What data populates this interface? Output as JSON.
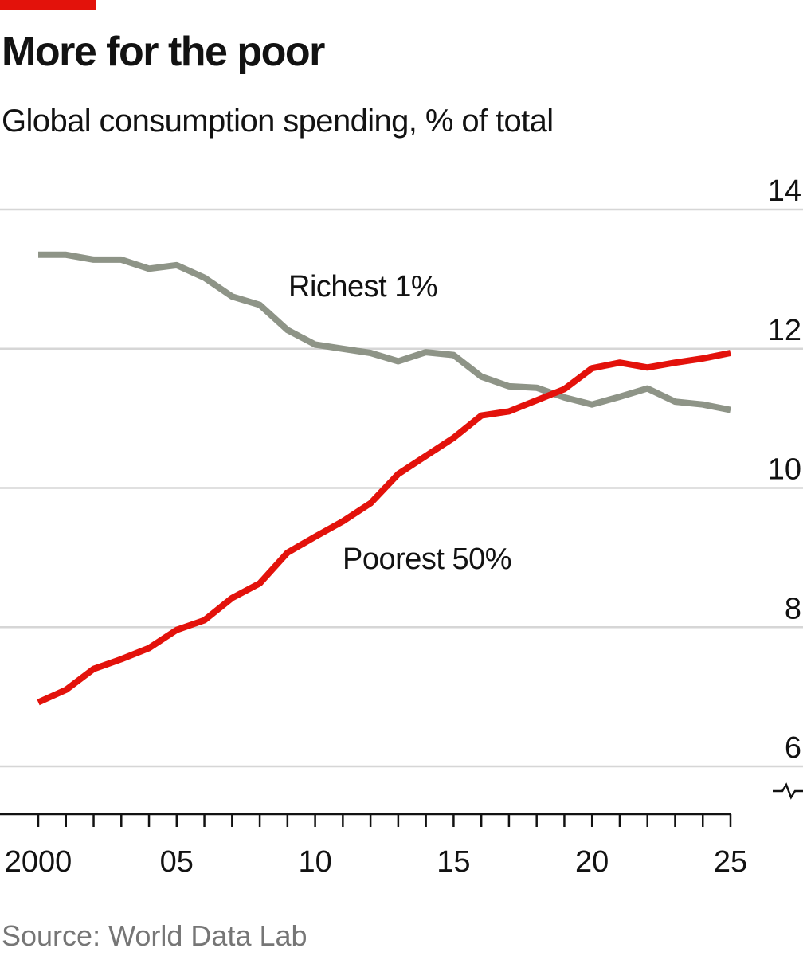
{
  "header": {
    "title": "More for the poor",
    "subtitle": "Global consumption spending, % of total"
  },
  "footer": {
    "source": "Source: World Data Lab"
  },
  "chart_data": {
    "type": "line",
    "title": "More for the poor",
    "subtitle": "Global consumption spending, % of total",
    "xlabel": "",
    "ylabel": "",
    "x": [
      2000,
      2001,
      2002,
      2003,
      2004,
      2005,
      2006,
      2007,
      2008,
      2009,
      2010,
      2011,
      2012,
      2013,
      2014,
      2015,
      2016,
      2017,
      2018,
      2019,
      2020,
      2021,
      2022,
      2023,
      2024,
      2025
    ],
    "xlim": [
      2000,
      2025
    ],
    "ylim": [
      6,
      14
    ],
    "y_axis_broken_at_zero": true,
    "xticks": [
      2000,
      2005,
      2010,
      2015,
      2020,
      2025
    ],
    "xtick_labels": [
      "2000",
      "05",
      "10",
      "15",
      "20",
      "25"
    ],
    "yticks": [
      6,
      8,
      10,
      12,
      14
    ],
    "ytick_labels": [
      "6",
      "8",
      "10",
      "12",
      "14"
    ],
    "y_axis_side": "right",
    "grid": "horizontal",
    "legend": "inline labels",
    "series": [
      {
        "name": "Richest 1%",
        "color": "#8e9487",
        "values": [
          13.35,
          13.35,
          13.28,
          13.28,
          13.15,
          13.2,
          13.02,
          12.75,
          12.63,
          12.27,
          12.06,
          12.0,
          11.94,
          11.82,
          11.95,
          11.91,
          11.6,
          11.46,
          11.44,
          11.3,
          11.2,
          11.31,
          11.43,
          11.24,
          11.2,
          11.12
        ]
      },
      {
        "name": "Poorest 50%",
        "color": "#e3120b",
        "values": [
          6.92,
          7.1,
          7.4,
          7.54,
          7.7,
          7.96,
          8.1,
          8.42,
          8.63,
          9.07,
          9.3,
          9.52,
          9.78,
          10.2,
          10.46,
          10.72,
          11.04,
          11.1,
          11.26,
          11.42,
          11.72,
          11.8,
          11.73,
          11.8,
          11.86,
          11.94
        ]
      }
    ],
    "annotations": [
      "Richest 1%",
      "Poorest 50%"
    ]
  }
}
